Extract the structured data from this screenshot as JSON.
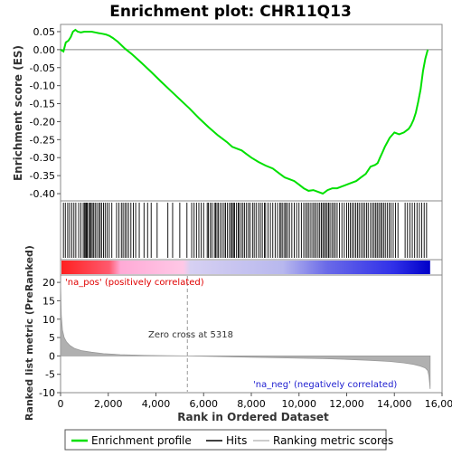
{
  "chart_data": {
    "type": "line",
    "title": "Enrichment plot: CHR11Q13",
    "xlabel": "Rank in Ordered Dataset",
    "x_ticks": [
      0,
      2000,
      4000,
      6000,
      8000,
      10000,
      12000,
      14000,
      16000
    ],
    "x_tick_labels": [
      "0",
      "2,000",
      "4,000",
      "6,000",
      "8,000",
      "10,000",
      "12,000",
      "14,000",
      "16,000"
    ],
    "xlim": [
      0,
      16000
    ],
    "n_genes": 15500,
    "es_panel": {
      "ylabel": "Enrichment score (ES)",
      "ylim": [
        -0.42,
        0.07
      ],
      "y_ticks": [
        0.05,
        0.0,
        -0.05,
        -0.1,
        -0.15,
        -0.2,
        -0.25,
        -0.3,
        -0.35,
        -0.4
      ],
      "y_tick_labels": [
        "0.05",
        "0.00",
        "-0.05",
        "-0.10",
        "-0.15",
        "-0.20",
        "-0.25",
        "-0.30",
        "-0.35",
        "-0.40"
      ],
      "series": [
        {
          "label": "Enrichment profile",
          "color": "#00e000",
          "x": [
            0,
            120,
            220,
            330,
            430,
            520,
            620,
            720,
            850,
            1000,
            1150,
            1300,
            1450,
            1600,
            1750,
            1900,
            2050,
            2200,
            2400,
            2700,
            3000,
            3400,
            3800,
            4200,
            4600,
            5000,
            5400,
            5800,
            6200,
            6600,
            7000,
            7200,
            7400,
            7600,
            7800,
            8000,
            8300,
            8600,
            8900,
            9200,
            9400,
            9600,
            9800,
            10000,
            10200,
            10400,
            10600,
            10800,
            11000,
            11200,
            11400,
            11600,
            11800,
            12000,
            12200,
            12400,
            12600,
            12800,
            13000,
            13200,
            13300,
            13400,
            13500,
            13600,
            13700,
            13800,
            14000,
            14200,
            14400,
            14500,
            14600,
            14700,
            14800,
            14900,
            15000,
            15100,
            15200,
            15300,
            15400
          ],
          "y": [
            0.0,
            -0.005,
            0.02,
            0.025,
            0.035,
            0.05,
            0.055,
            0.05,
            0.048,
            0.05,
            0.05,
            0.05,
            0.048,
            0.046,
            0.044,
            0.042,
            0.038,
            0.032,
            0.022,
            0.003,
            -0.013,
            -0.037,
            -0.062,
            -0.088,
            -0.113,
            -0.138,
            -0.163,
            -0.19,
            -0.215,
            -0.238,
            -0.258,
            -0.27,
            -0.275,
            -0.28,
            -0.29,
            -0.3,
            -0.312,
            -0.322,
            -0.33,
            -0.345,
            -0.355,
            -0.36,
            -0.365,
            -0.375,
            -0.385,
            -0.392,
            -0.39,
            -0.395,
            -0.4,
            -0.39,
            -0.385,
            -0.385,
            -0.38,
            -0.375,
            -0.37,
            -0.365,
            -0.355,
            -0.345,
            -0.325,
            -0.32,
            -0.315,
            -0.3,
            -0.285,
            -0.27,
            -0.258,
            -0.245,
            -0.23,
            -0.235,
            -0.23,
            -0.225,
            -0.22,
            -0.21,
            -0.195,
            -0.175,
            -0.145,
            -0.11,
            -0.06,
            -0.025,
            0.0
          ]
        }
      ]
    },
    "hits_panel": {
      "label": "Hits",
      "color": "#000000",
      "hit_ranks": [
        120,
        200,
        300,
        380,
        470,
        560,
        640,
        760,
        850,
        950,
        1000,
        1050,
        1080,
        1120,
        1180,
        1230,
        1280,
        1330,
        1390,
        1450,
        1520,
        1600,
        1660,
        1720,
        1800,
        1870,
        1950,
        2040,
        2150,
        2350,
        2450,
        2550,
        2620,
        2700,
        2770,
        2850,
        2950,
        3050,
        3150,
        3300,
        3500,
        3650,
        3800,
        4050,
        4500,
        4700,
        5000,
        5300,
        5500,
        5600,
        5700,
        5800,
        5900,
        6000,
        6150,
        6200,
        6280,
        6350,
        6450,
        6500,
        6560,
        6620,
        6700,
        6780,
        6860,
        6920,
        7000,
        7080,
        7150,
        7200,
        7250,
        7300,
        7380,
        7450,
        7500,
        7580,
        7650,
        7720,
        7800,
        7880,
        7950,
        8050,
        8120,
        8200,
        8300,
        8380,
        8460,
        8550,
        8600,
        8700,
        8800,
        8900,
        9000,
        9100,
        9200,
        9250,
        9320,
        9400,
        9450,
        9520,
        9600,
        9700,
        9800,
        9900,
        10000,
        10100,
        10200,
        10280,
        10350,
        10420,
        10500,
        10580,
        10650,
        10720,
        10800,
        10870,
        10940,
        11000,
        11060,
        11120,
        11180,
        11240,
        11300,
        11380,
        11450,
        11520,
        11600,
        11700,
        11800,
        11900,
        12000,
        12080,
        12150,
        12230,
        12300,
        12380,
        12450,
        12520,
        12600,
        12680,
        12750,
        12830,
        12900,
        13000,
        13080,
        13150,
        13220,
        13280,
        13350,
        13420,
        13480,
        13550,
        13620,
        13700,
        13780,
        13860,
        13950,
        14050,
        14150,
        14450,
        14550,
        14650,
        14750,
        14850,
        14950,
        15050,
        15150,
        15250,
        15350
      ]
    },
    "metric_panel": {
      "label": "Ranking metric scores",
      "ylabel": "Ranked list metric (PreRanked)",
      "ylim": [
        -10,
        22
      ],
      "y_ticks": [
        20,
        15,
        10,
        5,
        0,
        -5,
        -10
      ],
      "y_tick_labels": [
        "20",
        "15",
        "10",
        "5",
        "0",
        "-5",
        "-10"
      ],
      "x": [
        0,
        30,
        80,
        150,
        250,
        400,
        600,
        900,
        1300,
        1800,
        2500,
        3500,
        4500,
        5318,
        6500,
        8000,
        9500,
        11000,
        12000,
        13000,
        13800,
        14400,
        14800,
        15100,
        15300,
        15400,
        15450,
        15480,
        15500
      ],
      "y": [
        20,
        11,
        7,
        5,
        3.8,
        2.8,
        2.0,
        1.4,
        1.0,
        0.6,
        0.35,
        0.15,
        0.05,
        0.0,
        -0.15,
        -0.35,
        -0.55,
        -0.75,
        -0.95,
        -1.2,
        -1.5,
        -1.9,
        -2.3,
        -2.8,
        -3.3,
        -4.0,
        -5.5,
        -7.5,
        -9.0
      ],
      "zero_cross_label": "Zero cross at 5318",
      "zero_cross": 5318,
      "pos_label": "'na_pos' (positively correlated)",
      "neg_label": "'na_neg' (negatively correlated)"
    },
    "legend": {
      "placement": "bottom",
      "entries": [
        "Enrichment profile",
        "Hits",
        "Ranking metric scores"
      ]
    },
    "colors": {
      "profile": "#00e000",
      "pos_label": "#e00000",
      "neg_label": "#2020d0",
      "bar_red": "#ff0000",
      "bar_pink": "#ffb4dc",
      "bar_lavender": "#c8c8f0",
      "bar_blue": "#0000ff",
      "metric_fill": "#b0b0b0"
    }
  }
}
